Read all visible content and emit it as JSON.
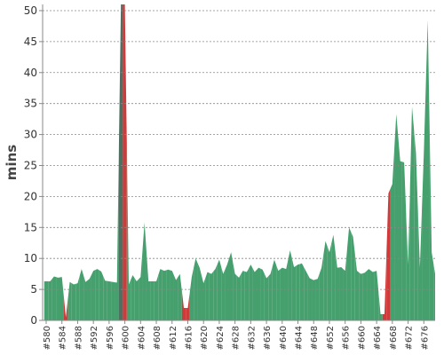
{
  "chart_data": {
    "type": "area",
    "y_label": "mins",
    "categories": [
      "#580",
      null,
      null,
      null,
      "#584",
      null,
      null,
      null,
      "#588",
      null,
      null,
      null,
      "#592",
      null,
      null,
      null,
      "#596",
      null,
      null,
      null,
      "#600",
      null,
      null,
      null,
      "#604",
      null,
      null,
      null,
      "#608",
      null,
      null,
      null,
      "#612",
      null,
      null,
      null,
      "#616",
      null,
      null,
      null,
      "#620",
      null,
      null,
      null,
      "#624",
      null,
      null,
      null,
      "#628",
      null,
      null,
      null,
      "#632",
      null,
      null,
      null,
      "#636",
      null,
      null,
      null,
      "#640",
      null,
      null,
      null,
      "#644",
      null,
      null,
      null,
      "#648",
      null,
      null,
      null,
      "#652",
      null,
      null,
      null,
      "#656",
      null,
      null,
      null,
      "#660",
      null,
      null,
      null,
      "#664",
      null,
      null,
      null,
      "#668",
      null,
      null,
      null,
      "#672",
      null,
      null,
      null,
      "#676",
      null,
      null,
      null
    ],
    "values": [
      6.3,
      6.3,
      7.1,
      6.9,
      7.0,
      0.5,
      6.2,
      5.8,
      6.0,
      8.3,
      6.2,
      6.7,
      8.0,
      8.3,
      7.9,
      6.4,
      6.3,
      6.2,
      6.1,
      51,
      51,
      5.8,
      7.3,
      6.3,
      7.0,
      15.8,
      6.3,
      6.3,
      6.3,
      8.3,
      8.0,
      8.2,
      8.0,
      6.5,
      7.5,
      2.0,
      2.0,
      7.0,
      10.0,
      8.5,
      6.0,
      7.8,
      7.5,
      8.3,
      9.8,
      7.5,
      9.0,
      11.0,
      7.5,
      6.9,
      8.0,
      7.8,
      9.0,
      7.8,
      8.5,
      8.2,
      6.8,
      7.5,
      9.8,
      8.0,
      8.5,
      8.3,
      11.3,
      8.6,
      9.0,
      9.2,
      8.0,
      6.8,
      6.5,
      6.7,
      8.5,
      12.8,
      11.0,
      13.8,
      8.5,
      8.6,
      8.0,
      15.0,
      13.5,
      8.0,
      7.5,
      7.7,
      8.3,
      7.8,
      8.0,
      1.0,
      1.0,
      20.5,
      22,
      33.3,
      25.7,
      25.5,
      9,
      34.5,
      27,
      8.5,
      27,
      48.5,
      11,
      7
    ],
    "colors": [
      "#45a06d",
      "#45a06d",
      "#45a06d",
      "#45a06d",
      "#45a06d",
      "#cf3a3a",
      "#45a06d",
      "#45a06d",
      "#45a06d",
      "#45a06d",
      "#45a06d",
      "#45a06d",
      "#45a06d",
      "#45a06d",
      "#45a06d",
      "#45a06d",
      "#45a06d",
      "#45a06d",
      "#45a06d",
      "#4f6f60",
      "#cf3a3a",
      "#45a06d",
      "#45a06d",
      "#45a06d",
      "#45a06d",
      "#45a06d",
      "#45a06d",
      "#45a06d",
      "#45a06d",
      "#45a06d",
      "#45a06d",
      "#45a06d",
      "#45a06d",
      "#45a06d",
      "#45a06d",
      "#cf3a3a",
      "#cf3a3a",
      "#45a06d",
      "#45a06d",
      "#45a06d",
      "#45a06d",
      "#45a06d",
      "#45a06d",
      "#45a06d",
      "#45a06d",
      "#45a06d",
      "#45a06d",
      "#45a06d",
      "#45a06d",
      "#45a06d",
      "#45a06d",
      "#45a06d",
      "#45a06d",
      "#45a06d",
      "#45a06d",
      "#45a06d",
      "#45a06d",
      "#45a06d",
      "#45a06d",
      "#45a06d",
      "#45a06d",
      "#45a06d",
      "#45a06d",
      "#45a06d",
      "#45a06d",
      "#45a06d",
      "#45a06d",
      "#45a06d",
      "#45a06d",
      "#45a06d",
      "#45a06d",
      "#45a06d",
      "#45a06d",
      "#45a06d",
      "#45a06d",
      "#45a06d",
      "#45a06d",
      "#45a06d",
      "#45a06d",
      "#45a06d",
      "#45a06d",
      "#45a06d",
      "#45a06d",
      "#45a06d",
      "#45a06d",
      "#45a06d",
      "#cf3a3a",
      "#cf3a3a",
      "#45a06d",
      "#45a06d",
      "#45a06d",
      "#45a06d",
      "#45a06d",
      "#45a06d",
      "#45a06d",
      "#45a06d",
      "#45a06d",
      "#45a06d",
      "#45a06d",
      "#45a06d"
    ],
    "ylim": [
      0,
      51
    ],
    "yticks": [
      0,
      5,
      10,
      15,
      20,
      25,
      30,
      35,
      40,
      45,
      50
    ],
    "grid": true
  }
}
